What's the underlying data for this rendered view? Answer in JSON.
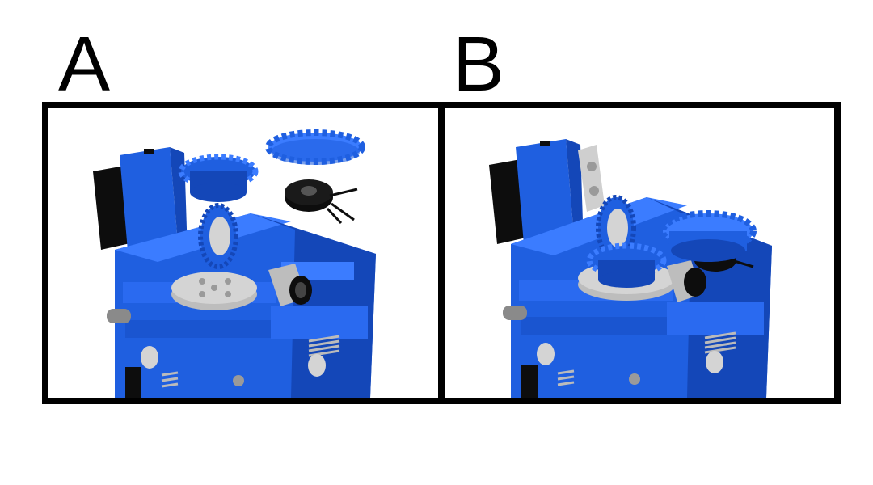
{
  "panels": [
    {
      "label": "A",
      "state": "gears and potentiometer separated from extruder body"
    },
    {
      "label": "B",
      "state": "gears and potentiometer mounted on extruder body"
    }
  ],
  "colors": {
    "body_blue": "#1f5fe0",
    "body_blue_dark": "#1447b8",
    "body_blue_light": "#3b7cff",
    "motor_black": "#0d0d0d",
    "bearing_grey": "#d4d4d4",
    "frame": "#000000",
    "background": "#ffffff"
  }
}
